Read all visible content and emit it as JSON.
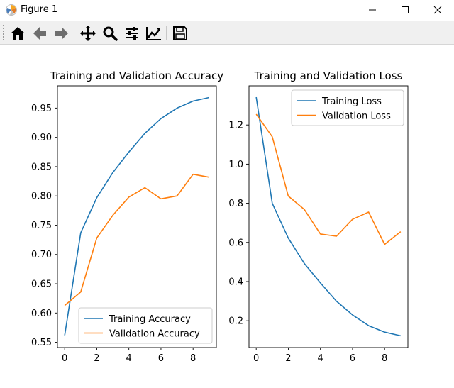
{
  "window": {
    "title": "Figure 1",
    "controls": [
      "minimize",
      "maximize",
      "close"
    ]
  },
  "toolbar": {
    "buttons": [
      {
        "name": "home",
        "icon": "home-icon"
      },
      {
        "name": "back",
        "icon": "arrow-left-icon"
      },
      {
        "name": "forward",
        "icon": "arrow-right-icon"
      },
      {
        "name": "pan",
        "icon": "move-icon"
      },
      {
        "name": "zoom",
        "icon": "magnifier-icon"
      },
      {
        "name": "subplots",
        "icon": "sliders-icon"
      },
      {
        "name": "edit-axis",
        "icon": "line-chart-icon"
      },
      {
        "name": "save",
        "icon": "floppy-disk-icon"
      }
    ]
  },
  "colors": {
    "train": "#1f77b4",
    "val": "#ff7f0e"
  },
  "chart_data": [
    {
      "type": "line",
      "title": "Training and Validation Accuracy",
      "xlabel": "",
      "ylabel": "",
      "x": [
        0,
        1,
        2,
        3,
        4,
        5,
        6,
        7,
        8,
        9
      ],
      "xticks": [
        0,
        2,
        4,
        6,
        8
      ],
      "xlim": [
        -0.45,
        9.45
      ],
      "yticks": [
        0.55,
        0.6,
        0.65,
        0.7,
        0.75,
        0.8,
        0.85,
        0.9,
        0.95
      ],
      "ytick_labels": [
        "0.55",
        "0.60",
        "0.65",
        "0.70",
        "0.75",
        "0.80",
        "0.85",
        "0.90",
        "0.95"
      ],
      "ylim": [
        0.541,
        0.988
      ],
      "legend": "lower right",
      "series": [
        {
          "name": "Training Accuracy",
          "values": [
            0.562,
            0.737,
            0.797,
            0.84,
            0.875,
            0.907,
            0.932,
            0.95,
            0.962,
            0.968
          ]
        },
        {
          "name": "Validation Accuracy",
          "values": [
            0.613,
            0.636,
            0.728,
            0.767,
            0.798,
            0.814,
            0.795,
            0.8,
            0.837,
            0.832
          ]
        }
      ]
    },
    {
      "type": "line",
      "title": "Training and Validation Loss",
      "xlabel": "",
      "ylabel": "",
      "x": [
        0,
        1,
        2,
        3,
        4,
        5,
        6,
        7,
        8,
        9
      ],
      "xticks": [
        0,
        2,
        4,
        6,
        8
      ],
      "xlim": [
        -0.45,
        9.45
      ],
      "yticks": [
        0.2,
        0.4,
        0.6,
        0.8,
        1.0,
        1.2
      ],
      "ytick_labels": [
        "0.2",
        "0.4",
        "0.6",
        "0.8",
        "1.0",
        "1.2"
      ],
      "ylim": [
        0.063,
        1.4
      ],
      "legend": "upper right",
      "series": [
        {
          "name": "Training Loss",
          "values": [
            1.342,
            0.8,
            0.622,
            0.492,
            0.393,
            0.3,
            0.23,
            0.175,
            0.142,
            0.123
          ]
        },
        {
          "name": "Validation Loss",
          "values": [
            1.255,
            1.14,
            0.837,
            0.768,
            0.643,
            0.632,
            0.718,
            0.755,
            0.59,
            0.655
          ]
        }
      ]
    }
  ]
}
